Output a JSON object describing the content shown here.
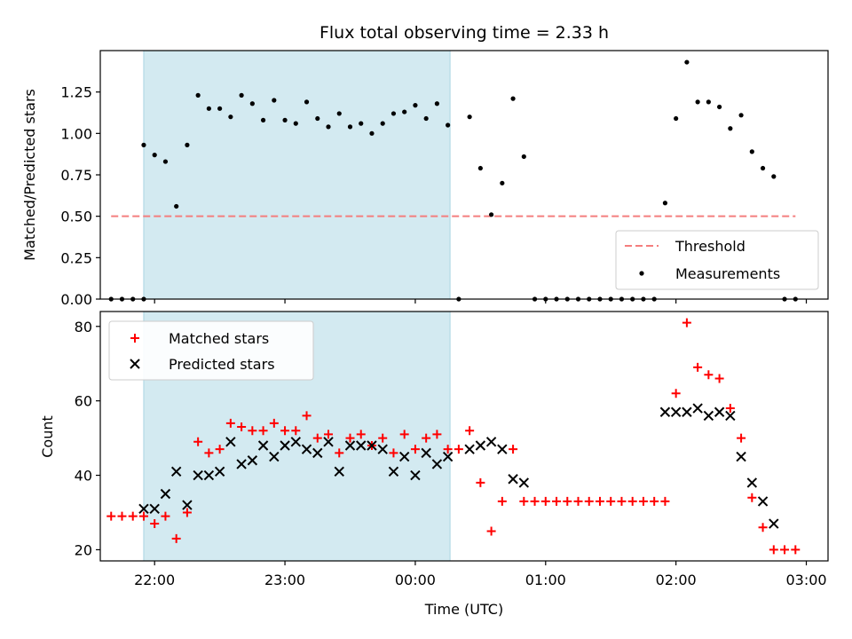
{
  "chart_data": [
    {
      "type": "scatter",
      "title": "Flux total observing time = 2.33 h",
      "xlabel": "",
      "ylabel": "Matched/Predicted stars",
      "ylim": [
        0,
        1.5
      ],
      "yticks": [
        0.0,
        0.25,
        0.5,
        0.75,
        1.0,
        1.25
      ],
      "ytick_labels": [
        "0.00",
        "0.25",
        "0.50",
        "0.75",
        "1.00",
        "1.25"
      ],
      "xlim": [
        "21:35",
        "03:10"
      ],
      "xticks": [
        "22:00",
        "23:00",
        "00:00",
        "01:00",
        "02:00",
        "03:00"
      ],
      "shaded_region": {
        "start": "21:55",
        "end": "00:16",
        "color": "#d3eaf1"
      },
      "threshold": {
        "name": "Threshold",
        "value": 0.5,
        "start": "21:40",
        "end": "02:55",
        "color": "#f47e7e"
      },
      "series": [
        {
          "name": "Measurements",
          "color": "#000000",
          "points": [
            [
              "21:40",
              0.0
            ],
            [
              "21:45",
              0.0
            ],
            [
              "21:50",
              0.0
            ],
            [
              "21:55",
              0.0
            ],
            [
              "21:55",
              0.93
            ],
            [
              "22:00",
              0.87
            ],
            [
              "22:05",
              0.83
            ],
            [
              "22:10",
              0.56
            ],
            [
              "22:15",
              0.93
            ],
            [
              "22:20",
              1.23
            ],
            [
              "22:25",
              1.15
            ],
            [
              "22:30",
              1.15
            ],
            [
              "22:35",
              1.1
            ],
            [
              "22:40",
              1.23
            ],
            [
              "22:45",
              1.18
            ],
            [
              "22:50",
              1.08
            ],
            [
              "22:55",
              1.2
            ],
            [
              "23:00",
              1.08
            ],
            [
              "23:05",
              1.06
            ],
            [
              "23:10",
              1.19
            ],
            [
              "23:15",
              1.09
            ],
            [
              "23:20",
              1.04
            ],
            [
              "23:25",
              1.12
            ],
            [
              "23:30",
              1.04
            ],
            [
              "23:35",
              1.06
            ],
            [
              "23:40",
              1.0
            ],
            [
              "23:45",
              1.06
            ],
            [
              "23:50",
              1.12
            ],
            [
              "23:55",
              1.13
            ],
            [
              "00:00",
              1.17
            ],
            [
              "00:05",
              1.09
            ],
            [
              "00:10",
              1.18
            ],
            [
              "00:15",
              1.05
            ],
            [
              "00:20",
              0.0
            ],
            [
              "00:25",
              1.1
            ],
            [
              "00:30",
              0.79
            ],
            [
              "00:35",
              0.51
            ],
            [
              "00:40",
              0.7
            ],
            [
              "00:45",
              1.21
            ],
            [
              "00:50",
              0.86
            ],
            [
              "00:55",
              0.0
            ],
            [
              "01:00",
              0.0
            ],
            [
              "01:05",
              0.0
            ],
            [
              "01:10",
              0.0
            ],
            [
              "01:15",
              0.0
            ],
            [
              "01:20",
              0.0
            ],
            [
              "01:25",
              0.0
            ],
            [
              "01:30",
              0.0
            ],
            [
              "01:35",
              0.0
            ],
            [
              "01:40",
              0.0
            ],
            [
              "01:45",
              0.0
            ],
            [
              "01:50",
              0.0
            ],
            [
              "01:55",
              0.58
            ],
            [
              "02:00",
              1.09
            ],
            [
              "02:05",
              1.43
            ],
            [
              "02:10",
              1.19
            ],
            [
              "02:15",
              1.19
            ],
            [
              "02:20",
              1.16
            ],
            [
              "02:25",
              1.03
            ],
            [
              "02:30",
              1.11
            ],
            [
              "02:35",
              0.89
            ],
            [
              "02:40",
              0.79
            ],
            [
              "02:45",
              0.74
            ],
            [
              "02:50",
              0.0
            ],
            [
              "02:55",
              0.0
            ]
          ]
        }
      ],
      "legend": {
        "placement": "lower right",
        "entries": [
          "Threshold",
          "Measurements"
        ]
      }
    },
    {
      "type": "scatter",
      "title": "",
      "xlabel": "Time (UTC)",
      "ylabel": "Count",
      "ylim": [
        17,
        84
      ],
      "yticks": [
        20,
        40,
        60,
        80
      ],
      "xlim": [
        "21:35",
        "03:10"
      ],
      "xticks": [
        "22:00",
        "23:00",
        "00:00",
        "01:00",
        "02:00",
        "03:00"
      ],
      "shaded_region": {
        "start": "21:55",
        "end": "00:16",
        "color": "#d3eaf1"
      },
      "series": [
        {
          "name": "Matched stars",
          "marker": "+",
          "color": "#ff0000",
          "points": [
            [
              "21:40",
              29
            ],
            [
              "21:45",
              29
            ],
            [
              "21:50",
              29
            ],
            [
              "21:55",
              29
            ],
            [
              "22:00",
              27
            ],
            [
              "22:05",
              29
            ],
            [
              "22:10",
              23
            ],
            [
              "22:15",
              30
            ],
            [
              "22:20",
              49
            ],
            [
              "22:25",
              46
            ],
            [
              "22:30",
              47
            ],
            [
              "22:35",
              54
            ],
            [
              "22:40",
              53
            ],
            [
              "22:45",
              52
            ],
            [
              "22:50",
              52
            ],
            [
              "22:55",
              54
            ],
            [
              "23:00",
              52
            ],
            [
              "23:05",
              52
            ],
            [
              "23:10",
              56
            ],
            [
              "23:15",
              50
            ],
            [
              "23:20",
              51
            ],
            [
              "23:25",
              46
            ],
            [
              "23:30",
              50
            ],
            [
              "23:35",
              51
            ],
            [
              "23:40",
              48
            ],
            [
              "23:45",
              50
            ],
            [
              "23:50",
              46
            ],
            [
              "23:55",
              51
            ],
            [
              "00:00",
              47
            ],
            [
              "00:05",
              50
            ],
            [
              "00:10",
              51
            ],
            [
              "00:15",
              47
            ],
            [
              "00:20",
              47
            ],
            [
              "00:25",
              52
            ],
            [
              "00:30",
              38
            ],
            [
              "00:35",
              25
            ],
            [
              "00:40",
              33
            ],
            [
              "00:45",
              47
            ],
            [
              "00:50",
              33
            ],
            [
              "00:55",
              33
            ],
            [
              "01:00",
              33
            ],
            [
              "01:05",
              33
            ],
            [
              "01:10",
              33
            ],
            [
              "01:15",
              33
            ],
            [
              "01:20",
              33
            ],
            [
              "01:25",
              33
            ],
            [
              "01:30",
              33
            ],
            [
              "01:35",
              33
            ],
            [
              "01:40",
              33
            ],
            [
              "01:45",
              33
            ],
            [
              "01:50",
              33
            ],
            [
              "01:55",
              33
            ],
            [
              "02:00",
              62
            ],
            [
              "02:05",
              81
            ],
            [
              "02:10",
              69
            ],
            [
              "02:15",
              67
            ],
            [
              "02:20",
              66
            ],
            [
              "02:25",
              58
            ],
            [
              "02:30",
              50
            ],
            [
              "02:35",
              34
            ],
            [
              "02:40",
              26
            ],
            [
              "02:45",
              20
            ],
            [
              "02:50",
              20
            ],
            [
              "02:55",
              20
            ]
          ]
        },
        {
          "name": "Predicted stars",
          "marker": "x",
          "color": "#000000",
          "points": [
            [
              "21:55",
              31
            ],
            [
              "22:00",
              31
            ],
            [
              "22:05",
              35
            ],
            [
              "22:10",
              41
            ],
            [
              "22:15",
              32
            ],
            [
              "22:20",
              40
            ],
            [
              "22:25",
              40
            ],
            [
              "22:30",
              41
            ],
            [
              "22:35",
              49
            ],
            [
              "22:40",
              43
            ],
            [
              "22:45",
              44
            ],
            [
              "22:50",
              48
            ],
            [
              "22:55",
              45
            ],
            [
              "23:00",
              48
            ],
            [
              "23:05",
              49
            ],
            [
              "23:10",
              47
            ],
            [
              "23:15",
              46
            ],
            [
              "23:20",
              49
            ],
            [
              "23:25",
              41
            ],
            [
              "23:30",
              48
            ],
            [
              "23:35",
              48
            ],
            [
              "23:40",
              48
            ],
            [
              "23:45",
              47
            ],
            [
              "23:50",
              41
            ],
            [
              "23:55",
              45
            ],
            [
              "00:00",
              40
            ],
            [
              "00:05",
              46
            ],
            [
              "00:10",
              43
            ],
            [
              "00:15",
              45
            ],
            [
              "00:25",
              47
            ],
            [
              "00:30",
              48
            ],
            [
              "00:35",
              49
            ],
            [
              "00:40",
              47
            ],
            [
              "00:45",
              39
            ],
            [
              "00:50",
              38
            ],
            [
              "01:55",
              57
            ],
            [
              "02:00",
              57
            ],
            [
              "02:05",
              57
            ],
            [
              "02:10",
              58
            ],
            [
              "02:15",
              56
            ],
            [
              "02:20",
              57
            ],
            [
              "02:25",
              56
            ],
            [
              "02:30",
              45
            ],
            [
              "02:35",
              38
            ],
            [
              "02:40",
              33
            ],
            [
              "02:45",
              27
            ]
          ]
        }
      ],
      "legend": {
        "placement": "upper left",
        "entries": [
          "Matched stars",
          "Predicted stars"
        ]
      }
    }
  ]
}
